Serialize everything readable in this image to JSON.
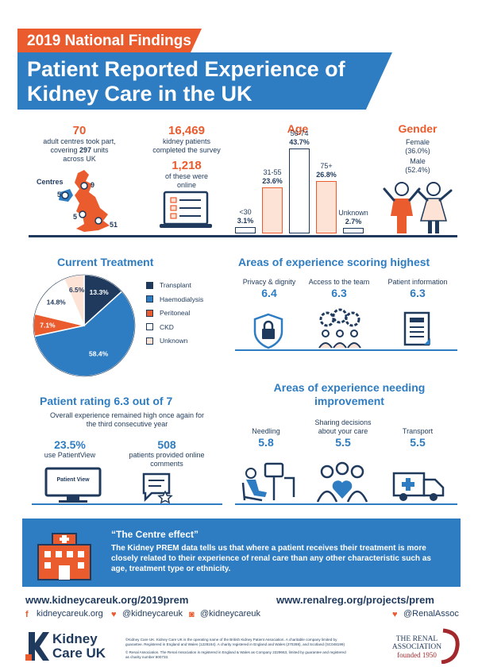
{
  "header": {
    "tag": "2019 National Findings",
    "title_line1": "Patient Reported Experience of",
    "title_line2": "Kidney Care in the UK"
  },
  "centres": {
    "count": "70",
    "text1": "adult centres took part,",
    "text2a": "covering ",
    "units": "297",
    "text2b": " units",
    "text3": "across UK",
    "map_label": "Centres",
    "map_numbers": [
      "5",
      "9",
      "5",
      "51"
    ]
  },
  "patients": {
    "count": "16,469",
    "text1": "kidney patients",
    "text2": "completed the survey",
    "online_count": "1,218",
    "online_text1": "of these were",
    "online_text2": "online"
  },
  "age": {
    "title": "Age",
    "groups": [
      {
        "label": "<30",
        "pct": "3.1%",
        "value": 3.1
      },
      {
        "label": "31-55",
        "pct": "23.6%",
        "value": 23.6
      },
      {
        "label": "56-74",
        "pct": "43.7%",
        "value": 43.7
      },
      {
        "label": "75+",
        "pct": "26.8%",
        "value": 26.8
      },
      {
        "label": "Unknown",
        "pct": "2.7%",
        "value": 2.7
      }
    ]
  },
  "gender": {
    "title": "Gender",
    "female_label": "Female",
    "female_pct": "(36.0%)",
    "male_label": "Male",
    "male_pct": "(52.4%)"
  },
  "treatment": {
    "title": "Current Treatment",
    "slices": [
      {
        "name": "Transplant",
        "pct": "13.3%",
        "value": 13.3,
        "color": "#1f3a5c"
      },
      {
        "name": "Haemodialysis",
        "pct": "58.4%",
        "value": 58.4,
        "color": "#2e7cc1"
      },
      {
        "name": "Peritoneal",
        "pct": "7.1%",
        "value": 7.1,
        "color": "#ea5b2d"
      },
      {
        "name": "CKD",
        "pct": "14.8%",
        "value": 14.8,
        "color": "#ffffff"
      },
      {
        "name": "Unknown",
        "pct": "6.5%",
        "value": 6.5,
        "color": "#fde3d6"
      }
    ]
  },
  "highest": {
    "title": "Areas of experience scoring highest",
    "items": [
      {
        "label": "Privacy & dignity",
        "value": "6.4",
        "icon": "padlock-icon"
      },
      {
        "label": "Access to the team",
        "value": "6.3",
        "icon": "team-gears-icon"
      },
      {
        "label": "Patient information",
        "value": "6.3",
        "icon": "leaflet-icon"
      }
    ]
  },
  "rating": {
    "title": "Patient rating 6.3 out of 7",
    "text1": "Overall experience remained high once again for",
    "text2": "the third consecutive year",
    "pv_pct": "23.5%",
    "pv_text": "use PatientView",
    "pv_screen": "Patient View",
    "comments_count": "508",
    "comments_text1": "patients provided online",
    "comments_text2": "comments"
  },
  "improve": {
    "title1": "Areas of experience needing",
    "title2": "improvement",
    "items": [
      {
        "label1": "Needling",
        "label2": "",
        "value": "5.8",
        "icon": "dialysis-chair-icon"
      },
      {
        "label1": "Sharing decisions",
        "label2": "about your care",
        "value": "5.5",
        "icon": "people-heart-icon"
      },
      {
        "label1": "Transport",
        "label2": "",
        "value": "5.5",
        "icon": "ambulance-icon"
      }
    ]
  },
  "centre_effect": {
    "title": "“The Centre effect”",
    "line1": "The Kidney PREM data tells us that where a patient receives their treatment is more",
    "line2": "closely related to their experience of renal care than any other  characteristic such as",
    "line3": "age, treatment type or ethnicity."
  },
  "footer": {
    "url_left": "www.kidneycareuk.org/2019prem",
    "url_right": "www.renalreg.org/projects/prem",
    "facebook": "kidneycareuk.org",
    "twitter": "@kidneycareuk",
    "instagram": "@kidneycareuk",
    "twitter_right": "@RenalAssoc",
    "logo_left1": "Kidney",
    "logo_left2": "Care UK",
    "logo_right1": "THE RENAL",
    "logo_right2": "ASSOCIATION",
    "logo_right3": "founded 1950",
    "fine1": "©Kidney Care UK. Kidney Care UK is the operating name of the British Kidney Patient Association. A charitable company limited by",
    "fine2": "guarantee. Registered in England and Wales (1228164). A charity registered in England and Wales (270288), and Scotland (SC048199)",
    "fine3": "© Renal Association. The Renal Association is registered in England & Wales as Company 2229663, limited by guarantee and registered",
    "fine4": "as charity number 800733."
  }
}
